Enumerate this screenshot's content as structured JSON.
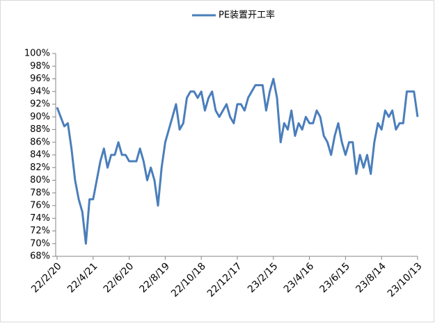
{
  "chart_data": {
    "type": "line",
    "series": [
      {
        "name": "PE装置开工率",
        "color": "#4a7ebb",
        "values": [
          91.5,
          90,
          88.5,
          89,
          85,
          80,
          77,
          75,
          70,
          77,
          77,
          80,
          83,
          85,
          82,
          84,
          84,
          86,
          84,
          84,
          83,
          83,
          83,
          85,
          83,
          80,
          82,
          80,
          76,
          82,
          86,
          88,
          90,
          92,
          88,
          89,
          93,
          94,
          94,
          93,
          94,
          91,
          93,
          94,
          91,
          90,
          91,
          92,
          90,
          89,
          92,
          92,
          91,
          93,
          94,
          95,
          95,
          95,
          91,
          94,
          96,
          93,
          86,
          89,
          88,
          91,
          87,
          89,
          88,
          90,
          89,
          89,
          91,
          90,
          87,
          86,
          84,
          87,
          89,
          86,
          84,
          86,
          86,
          81,
          84,
          82,
          84,
          81,
          86,
          89,
          88,
          91,
          90,
          91,
          88,
          89,
          89,
          94,
          94,
          94,
          90
        ]
      }
    ],
    "categories": [
      "22/2/20",
      null,
      null,
      null,
      null,
      null,
      null,
      null,
      null,
      null,
      "22/4/21",
      null,
      null,
      null,
      null,
      null,
      null,
      null,
      null,
      null,
      "22/6/20",
      null,
      null,
      null,
      null,
      null,
      null,
      null,
      null,
      null,
      "22/8/19",
      null,
      null,
      null,
      null,
      null,
      null,
      null,
      null,
      null,
      "22/10/18",
      null,
      null,
      null,
      null,
      null,
      null,
      null,
      null,
      null,
      "22/12/17",
      null,
      null,
      null,
      null,
      null,
      null,
      null,
      null,
      null,
      "23/2/15",
      null,
      null,
      null,
      null,
      null,
      null,
      null,
      null,
      null,
      "23/4/16",
      null,
      null,
      null,
      null,
      null,
      null,
      null,
      null,
      null,
      "23/6/15",
      null,
      null,
      null,
      null,
      null,
      null,
      null,
      null,
      null,
      "23/8/14",
      null,
      null,
      null,
      null,
      null,
      null,
      null,
      null,
      null,
      "23/10/13"
    ],
    "ylim": [
      68,
      100
    ],
    "yticks": [
      {
        "value": 68,
        "label": "68%"
      },
      {
        "value": 70,
        "label": "70%"
      },
      {
        "value": 72,
        "label": "72%"
      },
      {
        "value": 74,
        "label": "74%"
      },
      {
        "value": 76,
        "label": "76%"
      },
      {
        "value": 78,
        "label": "78%"
      },
      {
        "value": 80,
        "label": "80%"
      },
      {
        "value": 82,
        "label": "82%"
      },
      {
        "value": 84,
        "label": "84%"
      },
      {
        "value": 86,
        "label": "86%"
      },
      {
        "value": 88,
        "label": "88%"
      },
      {
        "value": 90,
        "label": "90%"
      },
      {
        "value": 92,
        "label": "92%"
      },
      {
        "value": 94,
        "label": "94%"
      },
      {
        "value": 96,
        "label": "96%"
      },
      {
        "value": 98,
        "label": "98%"
      },
      {
        "value": 100,
        "label": "100%"
      }
    ],
    "grid": false,
    "legend": "top"
  }
}
